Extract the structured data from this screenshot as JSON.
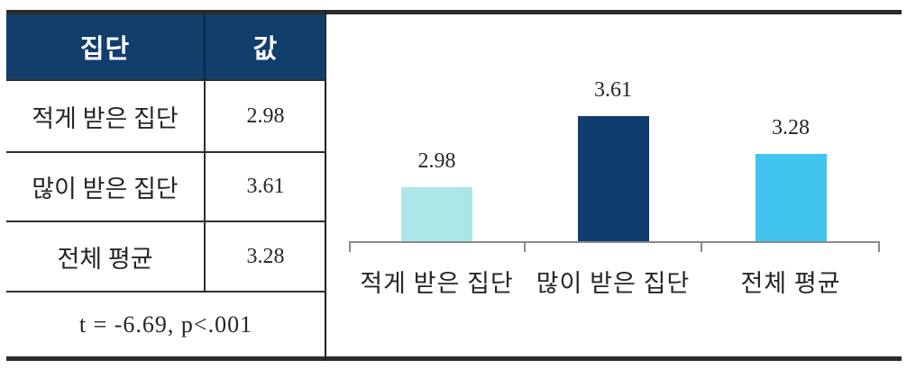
{
  "figure": {
    "table": {
      "header": {
        "col1": "집단",
        "col2": "값"
      },
      "rows": [
        {
          "label": "적게 받은 집단",
          "value": "2.98"
        },
        {
          "label": "많이 받은 집단",
          "value": "3.61"
        },
        {
          "label": "전체 평균",
          "value": "3.28"
        }
      ],
      "footer": "t = -6.69, p<.001"
    },
    "colors": {
      "header_bg": "#123e6c",
      "frame_rule": "#2b2b2b",
      "axis": "#8a8a8a",
      "text": "#262626"
    }
  },
  "chart_data": {
    "type": "bar",
    "categories": [
      "적게 받은 집단",
      "많이 받은 집단",
      "전체 평균"
    ],
    "values": [
      2.98,
      3.61,
      3.28
    ],
    "value_labels": [
      "2.98",
      "3.61",
      "3.28"
    ],
    "colors": [
      "#ace7e8",
      "#0e3d6e",
      "#41c5ee"
    ],
    "title": "",
    "xlabel": "",
    "ylabel": "",
    "ylim": [
      2.5,
      4.0
    ],
    "grid": false,
    "legend": "none"
  }
}
